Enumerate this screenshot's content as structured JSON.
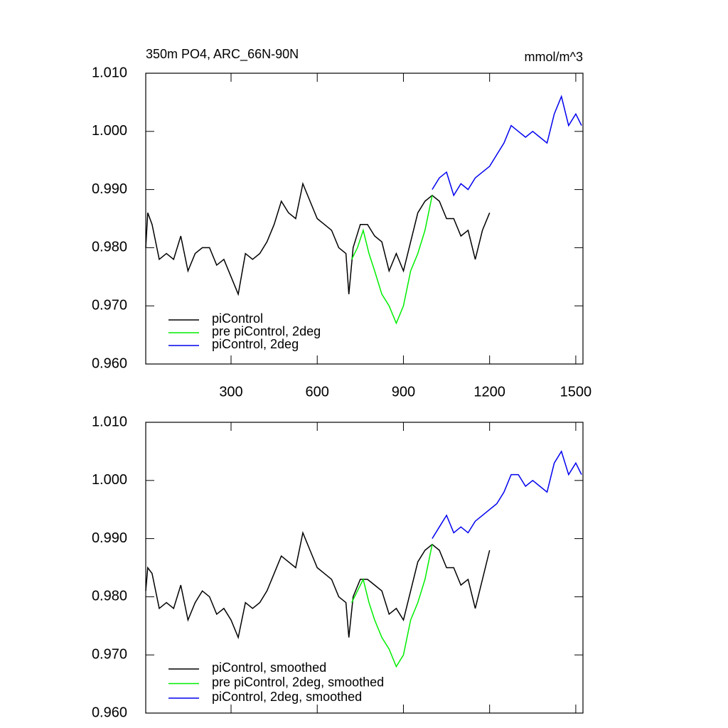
{
  "chart_data": [
    {
      "type": "line",
      "title": "350m PO4, ARC_66N-90N",
      "units": "mmol/m^3",
      "xlim": [
        3,
        1525
      ],
      "xticks": [
        300,
        600,
        900,
        1200,
        1500
      ],
      "show_xtick_labels": true,
      "ylim": [
        0.96,
        1.01
      ],
      "yticks": [
        {
          "value": 0.96,
          "label": "0.960"
        },
        {
          "value": 0.97,
          "label": "0.970"
        },
        {
          "value": 0.98,
          "label": "0.980"
        },
        {
          "value": 0.99,
          "label": "0.990"
        },
        {
          "value": 1.0,
          "label": "1.000"
        },
        {
          "value": 1.01,
          "label": "1.010"
        }
      ],
      "series": [
        {
          "name": "piControl",
          "color": "#000000",
          "x": [
            3,
            10,
            25,
            50,
            75,
            100,
            125,
            150,
            175,
            200,
            225,
            250,
            275,
            300,
            325,
            350,
            375,
            400,
            425,
            450,
            475,
            500,
            525,
            550,
            575,
            600,
            625,
            650,
            675,
            700,
            710,
            725,
            750,
            775,
            800,
            825,
            850,
            875,
            900,
            925,
            950,
            975,
            1000,
            1025,
            1050,
            1075,
            1100,
            1125,
            1150,
            1175,
            1200
          ],
          "values": [
            0.98,
            0.986,
            0.984,
            0.978,
            0.979,
            0.978,
            0.982,
            0.976,
            0.979,
            0.98,
            0.98,
            0.977,
            0.978,
            0.975,
            0.972,
            0.979,
            0.978,
            0.979,
            0.981,
            0.984,
            0.988,
            0.986,
            0.985,
            0.991,
            0.988,
            0.985,
            0.984,
            0.983,
            0.98,
            0.979,
            0.972,
            0.98,
            0.984,
            0.984,
            0.982,
            0.981,
            0.976,
            0.979,
            0.976,
            0.981,
            0.986,
            0.988,
            0.989,
            0.988,
            0.985,
            0.985,
            0.982,
            0.983,
            0.978,
            0.983,
            0.986
          ]
        },
        {
          "name": "pre piControl, 2deg",
          "color": "#00ee00",
          "x": [
            720,
            740,
            760,
            780,
            800,
            825,
            850,
            875,
            900,
            925,
            950,
            975,
            1000
          ],
          "values": [
            0.978,
            0.98,
            0.983,
            0.979,
            0.976,
            0.972,
            0.97,
            0.967,
            0.97,
            0.976,
            0.979,
            0.983,
            0.989
          ]
        },
        {
          "name": "piControl, 2deg",
          "color": "#0000ee",
          "x": [
            1000,
            1025,
            1050,
            1075,
            1100,
            1125,
            1150,
            1175,
            1200,
            1225,
            1250,
            1275,
            1300,
            1325,
            1350,
            1375,
            1400,
            1425,
            1450,
            1475,
            1500,
            1520
          ],
          "values": [
            0.99,
            0.992,
            0.993,
            0.989,
            0.991,
            0.99,
            0.992,
            0.993,
            0.994,
            0.996,
            0.998,
            1.001,
            1.0,
            0.999,
            1.0,
            0.999,
            0.998,
            1.003,
            1.006,
            1.001,
            1.003,
            1.001
          ]
        }
      ]
    },
    {
      "type": "line",
      "xlim": [
        3,
        1525
      ],
      "xticks": [
        300,
        600,
        900,
        1200,
        1500
      ],
      "show_xtick_labels": false,
      "ylim": [
        0.96,
        1.01
      ],
      "yticks": [
        {
          "value": 0.96,
          "label": "0.960"
        },
        {
          "value": 0.97,
          "label": "0.970"
        },
        {
          "value": 0.98,
          "label": "0.980"
        },
        {
          "value": 0.99,
          "label": "0.990"
        },
        {
          "value": 1.0,
          "label": "1.000"
        },
        {
          "value": 1.01,
          "label": "1.010"
        }
      ],
      "series": [
        {
          "name": "piControl, smoothed",
          "color": "#000000",
          "x": [
            3,
            10,
            25,
            50,
            75,
            100,
            125,
            150,
            175,
            200,
            225,
            250,
            275,
            300,
            325,
            350,
            375,
            400,
            425,
            450,
            475,
            500,
            525,
            550,
            575,
            600,
            625,
            650,
            675,
            700,
            710,
            725,
            750,
            775,
            800,
            825,
            850,
            875,
            900,
            925,
            950,
            975,
            1000,
            1025,
            1050,
            1075,
            1100,
            1125,
            1150,
            1175,
            1200
          ],
          "values": [
            0.981,
            0.985,
            0.984,
            0.978,
            0.979,
            0.978,
            0.982,
            0.976,
            0.979,
            0.981,
            0.98,
            0.977,
            0.978,
            0.976,
            0.973,
            0.979,
            0.978,
            0.979,
            0.981,
            0.984,
            0.987,
            0.986,
            0.985,
            0.991,
            0.988,
            0.985,
            0.984,
            0.983,
            0.98,
            0.979,
            0.973,
            0.98,
            0.983,
            0.983,
            0.982,
            0.981,
            0.977,
            0.978,
            0.976,
            0.981,
            0.986,
            0.988,
            0.989,
            0.988,
            0.985,
            0.985,
            0.982,
            0.983,
            0.978,
            0.983,
            0.988
          ]
        },
        {
          "name": "pre piControl, 2deg, smoothed",
          "color": "#00ee00",
          "x": [
            720,
            740,
            760,
            780,
            800,
            825,
            850,
            875,
            900,
            925,
            950,
            975,
            1000
          ],
          "values": [
            0.979,
            0.981,
            0.983,
            0.979,
            0.976,
            0.973,
            0.971,
            0.968,
            0.97,
            0.976,
            0.979,
            0.983,
            0.989
          ]
        },
        {
          "name": "piControl, 2deg, smoothed",
          "color": "#0000ee",
          "x": [
            1000,
            1025,
            1050,
            1075,
            1100,
            1125,
            1150,
            1175,
            1200,
            1225,
            1250,
            1275,
            1300,
            1325,
            1350,
            1375,
            1400,
            1425,
            1450,
            1475,
            1500,
            1520
          ],
          "values": [
            0.99,
            0.992,
            0.994,
            0.991,
            0.992,
            0.991,
            0.993,
            0.994,
            0.995,
            0.996,
            0.998,
            1.001,
            1.001,
            0.999,
            1.0,
            0.999,
            0.998,
            1.003,
            1.005,
            1.001,
            1.003,
            1.001
          ]
        }
      ]
    }
  ]
}
